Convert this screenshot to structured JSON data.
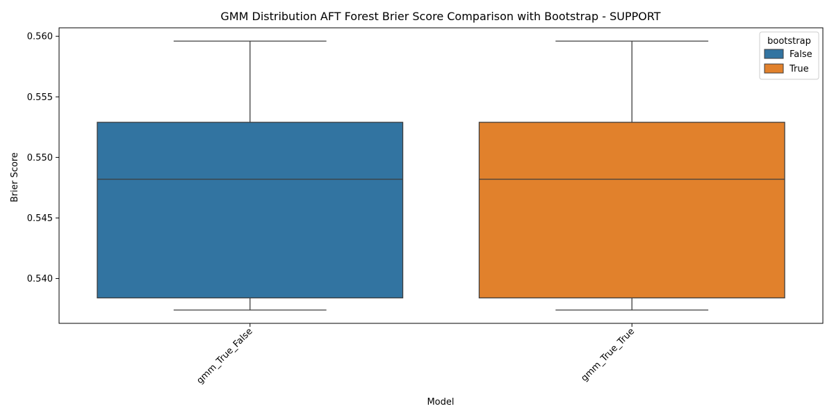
{
  "chart_data": {
    "type": "box",
    "title": "GMM Distribution AFT Forest Brier Score Comparison with Bootstrap  - SUPPORT",
    "xlabel": "Model",
    "ylabel": "Brier Score",
    "categories": [
      "gmm_True_False",
      "gmm_True_True"
    ],
    "ylim": [
      0.5363,
      0.5607
    ],
    "yticks": [
      "0.540",
      "0.545",
      "0.550",
      "0.555",
      "0.560"
    ],
    "ytick_values": [
      0.54,
      0.545,
      0.55,
      0.555,
      0.56
    ],
    "legend": {
      "title": "bootstrap",
      "placement": "top-right",
      "entries": [
        "False",
        "True"
      ]
    },
    "series": [
      {
        "name": "False",
        "color": "#3274a1",
        "category": "gmm_True_False",
        "whisker_low": 0.5374,
        "q1": 0.5384,
        "median": 0.5482,
        "q3": 0.5529,
        "whisker_high": 0.5596
      },
      {
        "name": "True",
        "color": "#e1812c",
        "category": "gmm_True_True",
        "whisker_low": 0.5374,
        "q1": 0.5384,
        "median": 0.5482,
        "q3": 0.5529,
        "whisker_high": 0.5596
      }
    ],
    "grid": false
  }
}
